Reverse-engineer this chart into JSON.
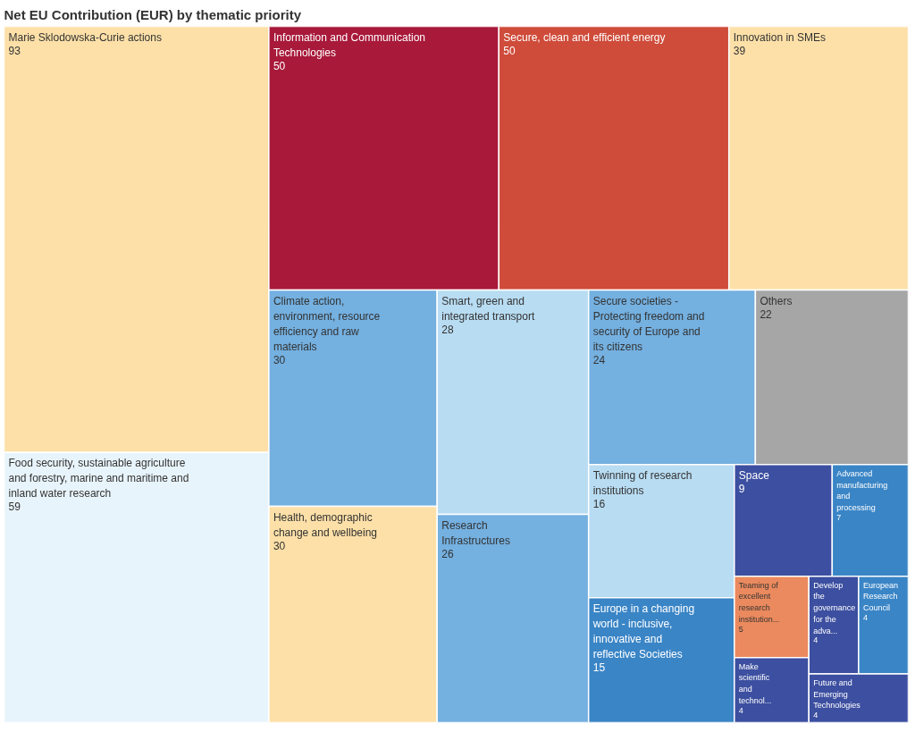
{
  "chart_data": {
    "type": "other",
    "data_labels": true,
    "title": "Net EU Contribution (EUR) by thematic priority",
    "categories": [
      "Marie Sklodowska-Curie actions",
      "Food security, sustainable agriculture and forestry, marine and maritime and inland water research",
      "Information and Communication Technologies",
      "Secure, clean and efficient energy",
      "Innovation in SMEs",
      "Climate action, environment, resource efficiency and raw materials",
      "Health, demographic change and wellbeing",
      "Smart, green and integrated transport",
      "Research Infrastructures",
      "Secure societies - Protecting freedom and security of Europe and its citizens",
      "Others",
      "Twinning of research institutions",
      "Europe in a changing world - inclusive, innovative and reflective Societies",
      "Space",
      "Advanced manufacturing and processing",
      "Teaming of excellent research institution...",
      "Make scientific and technol...",
      "Develop the governance for the adva...",
      "European Research Council",
      "Future and Emerging Technologies"
    ],
    "values": [
      93,
      59,
      50,
      50,
      39,
      30,
      30,
      28,
      26,
      24,
      22,
      16,
      15,
      9,
      7,
      5,
      4,
      4,
      4,
      4
    ],
    "colors": [
      "#fde0a8",
      "#e8f4fb",
      "#a8193a",
      "#cf4b3a",
      "#fde0a8",
      "#74b0e0",
      "#fde0a8",
      "#b8dcf2",
      "#74b0e0",
      "#74b0e0",
      "#a6a6a6",
      "#b8dcf2",
      "#3a85c6",
      "#3c4fa0",
      "#3a85c6",
      "#eb8a5e",
      "#3c4fa0",
      "#3c4fa0",
      "#3a85c6",
      "#3c4fa0"
    ]
  }
}
